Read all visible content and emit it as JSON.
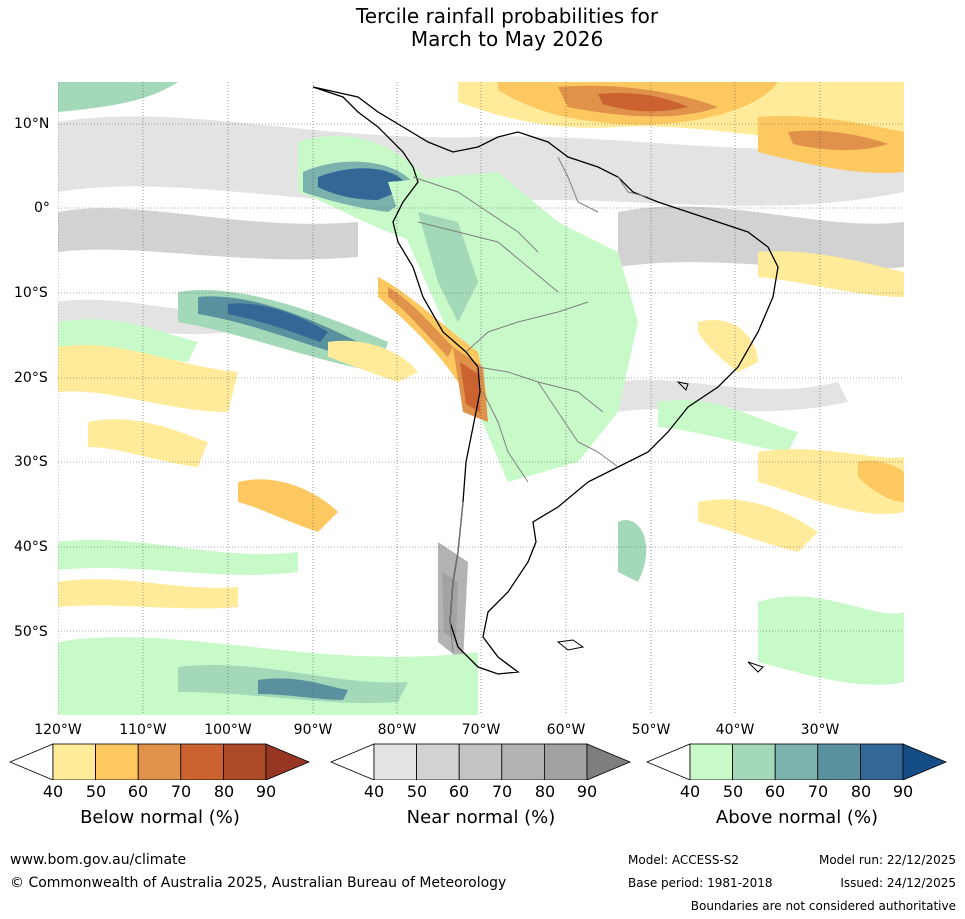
{
  "title": {
    "line1": "Tercile rainfall probabilities for",
    "line2": "March to May 2026"
  },
  "map": {
    "region": "South America and surrounding oceans",
    "longitude_labels": [
      "120°W",
      "110°W",
      "100°W",
      "90°W",
      "80°W",
      "70°W",
      "60°W",
      "50°W",
      "40°W",
      "30°W"
    ],
    "latitude_labels": [
      "10°N",
      "0°",
      "10°S",
      "20°S",
      "30°S",
      "40°S",
      "50°S"
    ],
    "colors": {
      "land_outline": "#000000",
      "border": "#808080",
      "grid": "#555555"
    }
  },
  "legends": [
    {
      "title": "Below normal (%)",
      "ticks": [
        "40",
        "50",
        "60",
        "70",
        "80",
        "90"
      ],
      "colors": [
        "#ffffff",
        "#ffeb99",
        "#fdc860",
        "#e0914a",
        "#cb6230",
        "#ad4a2a",
        "#973623"
      ]
    },
    {
      "title": "Near normal (%)",
      "ticks": [
        "40",
        "50",
        "60",
        "70",
        "80",
        "90"
      ],
      "colors": [
        "#ffffff",
        "#e3e3e3",
        "#d2d2d2",
        "#c3c3c3",
        "#b3b3b3",
        "#a2a2a2",
        "#7e7e7e"
      ]
    },
    {
      "title": "Above normal (%)",
      "ticks": [
        "40",
        "50",
        "60",
        "70",
        "80",
        "90"
      ],
      "colors": [
        "#ffffff",
        "#c8fac9",
        "#a3d8b8",
        "#7bb2ad",
        "#5a919f",
        "#336795",
        "#154e86"
      ]
    }
  ],
  "footer": {
    "website": "www.bom.gov.au/climate",
    "copyright": "© Commonwealth of Australia 2025, Australian Bureau of Meteorology",
    "model": "Model: ACCESS-S2",
    "base_period": "Base period: 1981-2018",
    "model_run": "Model run: 22/12/2025",
    "issued": "Issued: 24/12/2025",
    "disclaimer": "Boundaries are not considered authoritative"
  }
}
